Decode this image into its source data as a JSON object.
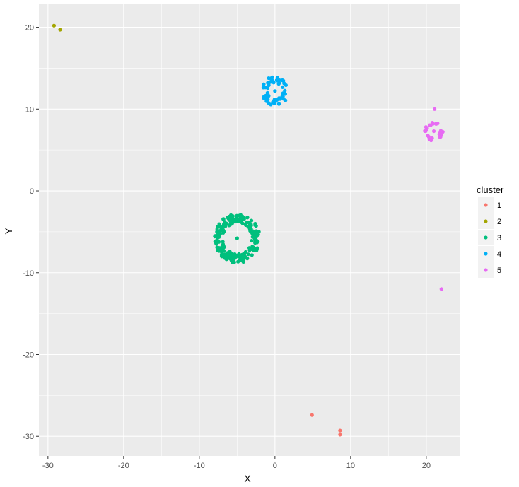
{
  "chart_data": {
    "type": "scatter",
    "xlabel": "X",
    "ylabel": "Y",
    "xlim": [
      -31.2,
      24.5
    ],
    "ylim": [
      -32.4,
      22.9
    ],
    "x_ticks": [
      -30,
      -20,
      -10,
      0,
      10,
      20
    ],
    "y_ticks": [
      20,
      10,
      0,
      -10,
      -20,
      -30
    ],
    "x_tick_labels": [
      "-30",
      "-20",
      "-10",
      "0",
      "10",
      "20"
    ],
    "y_tick_labels": [
      "20",
      "10",
      "0",
      "-10",
      "-20",
      "-30"
    ],
    "grid": true,
    "legend": {
      "title": "cluster",
      "placement": "right"
    },
    "series": [
      {
        "name": "1",
        "color": "#F8766D",
        "points": [
          [
            4.9,
            -27.4
          ],
          [
            8.6,
            -29.3
          ],
          [
            8.6,
            -29.8
          ]
        ]
      },
      {
        "name": "2",
        "color": "#A3A500",
        "points": [
          [
            -29.2,
            20.2
          ],
          [
            -28.4,
            19.7
          ]
        ]
      },
      {
        "name": "3",
        "color": "#00BF7D",
        "ring": {
          "center": [
            -5.0,
            -5.8
          ],
          "inner_radius": 1.9,
          "outer_radius": 3.0,
          "count": 220
        },
        "points": [
          [
            -5.0,
            -5.8
          ]
        ]
      },
      {
        "name": "4",
        "color": "#00B0F6",
        "ring": {
          "center": [
            0.0,
            12.2
          ],
          "inner_radius": 1.0,
          "outer_radius": 1.8,
          "count": 60
        },
        "points": [
          [
            0.0,
            12.2
          ]
        ]
      },
      {
        "name": "5",
        "color": "#E76BF3",
        "ring": {
          "center": [
            21.0,
            7.3
          ],
          "inner_radius": 0.8,
          "outer_radius": 1.2,
          "count": 28
        },
        "points": [
          [
            21.0,
            7.3
          ],
          [
            21.1,
            10.0
          ],
          [
            22.0,
            -12.0
          ]
        ]
      }
    ]
  }
}
